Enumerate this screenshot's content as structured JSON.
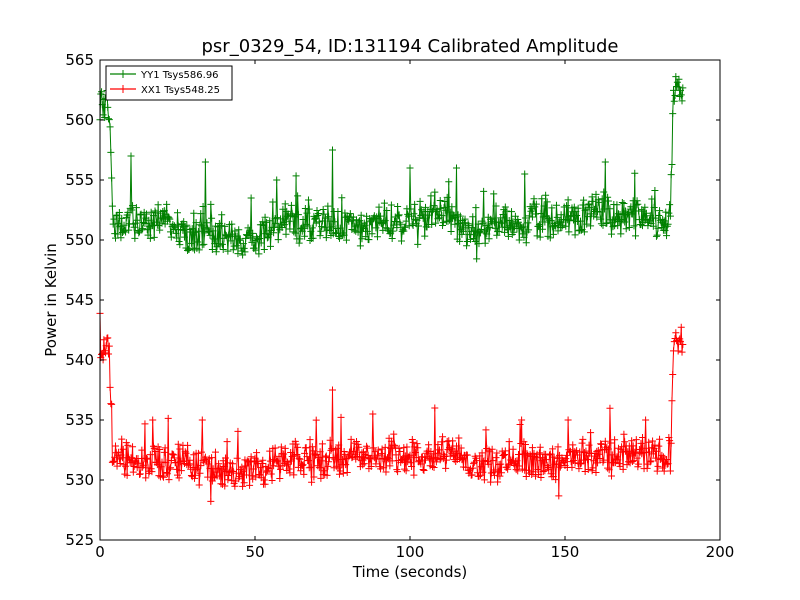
{
  "chart_data": {
    "type": "line",
    "title": "psr_0329_54, ID:131194 Calibrated Amplitude",
    "xlabel": "Time (seconds)",
    "ylabel": "Power in Kelvin",
    "xlim": [
      0,
      200
    ],
    "ylim": [
      525,
      565
    ],
    "xticks": [
      0,
      50,
      100,
      150,
      200
    ],
    "yticks": [
      525,
      530,
      535,
      540,
      545,
      550,
      555,
      560,
      565
    ],
    "grid": false,
    "legend_position": "top-left",
    "marker": "+",
    "series": [
      {
        "name": "YY1 Tsys586.96",
        "color": "#008000",
        "x": [
          0,
          1,
          2,
          3,
          4,
          5,
          10,
          15,
          20,
          25,
          30,
          35,
          40,
          45,
          50,
          55,
          60,
          65,
          70,
          75,
          80,
          85,
          90,
          95,
          100,
          105,
          110,
          115,
          120,
          125,
          130,
          135,
          140,
          145,
          150,
          155,
          160,
          165,
          170,
          175,
          180,
          184,
          185,
          186,
          187,
          188
        ],
        "values": [
          561.5,
          562,
          561,
          561.3,
          551.5,
          551,
          551.5,
          551,
          552,
          551,
          550.5,
          551,
          550.5,
          550,
          550.5,
          551,
          551.5,
          551,
          551.5,
          551,
          551.5,
          551,
          551.5,
          551.5,
          551.5,
          552,
          552.5,
          551.5,
          550.5,
          551,
          551.5,
          551.5,
          552,
          551.5,
          551.5,
          552,
          552.5,
          552,
          552,
          552,
          551.5,
          551.5,
          562.5,
          562.5,
          562.5,
          562
        ],
        "spikes": [
          [
            10,
            557
          ],
          [
            34,
            556.5
          ],
          [
            57,
            555
          ],
          [
            75,
            557.5
          ],
          [
            100,
            556
          ],
          [
            115,
            556
          ],
          [
            137,
            555.5
          ],
          [
            163,
            556.5
          ]
        ]
      },
      {
        "name": "XX1 Tsys548.25",
        "color": "#ff0000",
        "x": [
          0,
          1,
          2,
          3,
          4,
          5,
          10,
          15,
          20,
          25,
          30,
          35,
          40,
          45,
          50,
          55,
          60,
          65,
          70,
          75,
          80,
          85,
          90,
          95,
          100,
          105,
          110,
          115,
          120,
          125,
          130,
          135,
          140,
          145,
          150,
          155,
          160,
          165,
          170,
          175,
          180,
          184,
          185,
          186,
          187,
          188
        ],
        "values": [
          540.5,
          541,
          541,
          541,
          532,
          532,
          531.5,
          531.5,
          531.5,
          531.5,
          531.5,
          531,
          531,
          531,
          531,
          531,
          531.5,
          531.5,
          531.5,
          532,
          532,
          532,
          532,
          532,
          532,
          532,
          532.5,
          532,
          531.5,
          531.5,
          531.5,
          532,
          531.5,
          531.5,
          531.5,
          532,
          532,
          532,
          532,
          532,
          532,
          532,
          542,
          542,
          541.5,
          541.5
        ],
        "spikes": [
          [
            17,
            535
          ],
          [
            33,
            535
          ],
          [
            75,
            537.5
          ],
          [
            88,
            535.5
          ],
          [
            108,
            536
          ],
          [
            136,
            535
          ],
          [
            151,
            535
          ],
          [
            176,
            535
          ]
        ]
      }
    ]
  }
}
